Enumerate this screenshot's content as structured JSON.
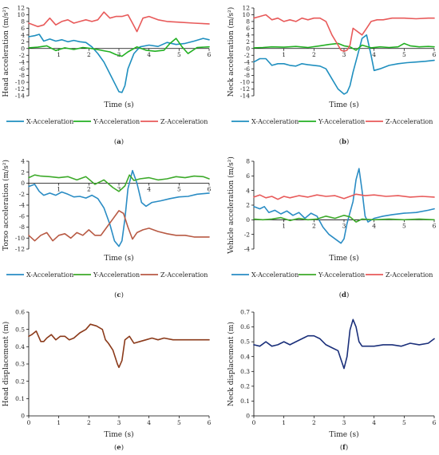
{
  "chart_data": [
    {
      "panel": "(a)",
      "type": "line",
      "ylabel": "Head acceleration (m/s²)",
      "xlabel": "Time (s)",
      "xlim": [
        0,
        6
      ],
      "ylim": [
        -14,
        12
      ],
      "xticks": [
        1,
        2,
        3,
        4,
        5,
        6
      ],
      "yticks": [
        12,
        10,
        8,
        6,
        4,
        2,
        0,
        -2,
        -4,
        -6,
        -8,
        -10,
        -12,
        -14
      ],
      "series": [
        {
          "name": "X-Acceleration",
          "color": "#1f8fbf",
          "x": [
            0,
            0.2,
            0.35,
            0.5,
            0.7,
            0.9,
            1.1,
            1.3,
            1.5,
            1.7,
            1.9,
            2.1,
            2.3,
            2.5,
            2.7,
            2.9,
            3.0,
            3.1,
            3.2,
            3.3,
            3.5,
            3.7,
            4.0,
            4.3,
            4.6,
            4.9,
            5.2,
            5.5,
            5.8,
            6.0
          ],
          "y": [
            3.5,
            3.8,
            4.2,
            2.2,
            2.8,
            2.2,
            2.6,
            2.0,
            2.4,
            2.0,
            1.8,
            0.5,
            -1.5,
            -4.0,
            -7.5,
            -11.0,
            -12.8,
            -13.0,
            -11.0,
            -6.0,
            -1.5,
            0.5,
            1.0,
            0.6,
            1.8,
            1.2,
            1.5,
            2.2,
            3.0,
            2.6
          ]
        },
        {
          "name": "Y-Acceleration",
          "color": "#22b022",
          "x": [
            0,
            0.3,
            0.6,
            0.9,
            1.2,
            1.5,
            1.8,
            2.1,
            2.4,
            2.7,
            2.9,
            3.1,
            3.3,
            3.6,
            3.9,
            4.2,
            4.5,
            4.7,
            4.9,
            5.1,
            5.3,
            5.6,
            6.0
          ],
          "y": [
            0.2,
            0.4,
            0.8,
            -0.6,
            0.2,
            -0.3,
            0.3,
            0.0,
            -0.5,
            -1.0,
            -1.8,
            -2.3,
            -1.0,
            0.5,
            -0.5,
            -0.8,
            -0.5,
            1.5,
            3.0,
            0.5,
            -1.5,
            0.3,
            0.5
          ]
        },
        {
          "name": "Z-Acceleration",
          "color": "#e85a5a",
          "x": [
            0,
            0.3,
            0.5,
            0.7,
            0.9,
            1.1,
            1.3,
            1.5,
            1.7,
            1.9,
            2.1,
            2.3,
            2.5,
            2.7,
            2.9,
            3.1,
            3.3,
            3.45,
            3.6,
            3.8,
            4.0,
            4.3,
            4.6,
            5.0,
            5.5,
            6.0
          ],
          "y": [
            7.5,
            6.5,
            7.0,
            9.0,
            7.0,
            8.0,
            8.5,
            7.5,
            8.0,
            8.5,
            8.0,
            8.5,
            10.8,
            9.0,
            9.5,
            9.5,
            10.0,
            7.5,
            5.0,
            9.0,
            9.5,
            8.5,
            8.0,
            7.8,
            7.5,
            7.3
          ]
        }
      ]
    },
    {
      "panel": "(b)",
      "type": "line",
      "ylabel": "Neck acceleration (m/s²)",
      "xlabel": "Time (s)",
      "xlim": [
        0,
        6
      ],
      "ylim": [
        -14,
        12
      ],
      "xticks": [
        1,
        2,
        3,
        4,
        5,
        6
      ],
      "yticks": [
        12,
        10,
        8,
        6,
        4,
        2,
        0,
        -2,
        -4,
        -6,
        -8,
        -10,
        -12,
        -14
      ],
      "series": [
        {
          "name": "X-Acceleration",
          "color": "#1f8fbf",
          "x": [
            0,
            0.2,
            0.4,
            0.6,
            0.8,
            1.0,
            1.2,
            1.4,
            1.6,
            1.8,
            2.0,
            2.2,
            2.4,
            2.6,
            2.8,
            3.0,
            3.1,
            3.2,
            3.3,
            3.45,
            3.6,
            3.75,
            3.9,
            4.0,
            4.2,
            4.5,
            4.8,
            5.1,
            5.4,
            5.7,
            6.0
          ],
          "y": [
            -4,
            -3,
            -3,
            -5,
            -4.5,
            -4.5,
            -5,
            -5.2,
            -4.5,
            -4.8,
            -5,
            -5.2,
            -6,
            -9,
            -12,
            -13.5,
            -13,
            -11,
            -7,
            -2,
            3,
            4,
            -2,
            -6.5,
            -6,
            -5,
            -4.5,
            -4.2,
            -4.0,
            -3.8,
            -3.5
          ]
        },
        {
          "name": "Y-Acceleration",
          "color": "#22b022",
          "x": [
            0,
            0.3,
            0.6,
            1.0,
            1.4,
            1.8,
            2.2,
            2.5,
            2.8,
            3.0,
            3.2,
            3.4,
            3.6,
            3.9,
            4.2,
            4.5,
            4.8,
            5.0,
            5.2,
            5.5,
            5.8,
            6.0
          ],
          "y": [
            0.2,
            0.3,
            0.5,
            0.4,
            0.6,
            0.3,
            0.8,
            1.2,
            1.5,
            0.8,
            0.5,
            -0.5,
            1.0,
            0.2,
            0.5,
            0.3,
            0.5,
            1.5,
            0.8,
            0.5,
            0.6,
            0.5
          ]
        },
        {
          "name": "Z-Acceleration",
          "color": "#e85a5a",
          "x": [
            0,
            0.2,
            0.4,
            0.6,
            0.8,
            1.0,
            1.2,
            1.4,
            1.6,
            1.8,
            2.0,
            2.2,
            2.4,
            2.6,
            2.8,
            2.9,
            3.0,
            3.1,
            3.2,
            3.3,
            3.45,
            3.6,
            3.75,
            3.9,
            4.1,
            4.3,
            4.6,
            5.0,
            5.4,
            5.8,
            6.0
          ],
          "y": [
            9,
            9.5,
            10,
            8.5,
            9,
            8,
            8.5,
            8,
            9,
            8.5,
            9,
            9,
            8,
            4,
            1,
            -0.5,
            -0.8,
            -0.5,
            1,
            6,
            5,
            4,
            6,
            8,
            8.5,
            8.5,
            9,
            9,
            8.8,
            9,
            9
          ]
        }
      ]
    },
    {
      "panel": "(c)",
      "type": "line",
      "ylabel": "Torso acceleration (m/s²)",
      "xlabel": "Time (s)",
      "xlim": [
        0,
        6
      ],
      "ylim": [
        -12,
        4
      ],
      "xticks": [
        1,
        2,
        3,
        4,
        5,
        6
      ],
      "yticks": [
        4,
        2,
        0,
        -2,
        -4,
        -6,
        -8,
        -10,
        -12
      ],
      "series": [
        {
          "name": "X-Acceleration",
          "color": "#2a8cc4",
          "x": [
            0,
            0.2,
            0.35,
            0.5,
            0.7,
            0.9,
            1.1,
            1.3,
            1.5,
            1.7,
            1.9,
            2.1,
            2.3,
            2.5,
            2.7,
            2.85,
            3.0,
            3.1,
            3.2,
            3.3,
            3.45,
            3.6,
            3.75,
            3.9,
            4.1,
            4.4,
            4.7,
            5.0,
            5.3,
            5.6,
            6.0
          ],
          "y": [
            -0.6,
            -0.2,
            -1.5,
            -2.2,
            -1.8,
            -2.2,
            -1.6,
            -2.0,
            -2.5,
            -2.4,
            -2.7,
            -2.2,
            -2.8,
            -4.5,
            -7.5,
            -10.5,
            -11.5,
            -10.5,
            -6.5,
            -1.0,
            2.3,
            0.0,
            -3.5,
            -4.2,
            -3.5,
            -3.2,
            -2.8,
            -2.5,
            -2.4,
            -2.0,
            -1.8
          ]
        },
        {
          "name": "Y-Acceleration",
          "color": "#3daa2a",
          "x": [
            0,
            0.2,
            0.4,
            0.7,
            1.0,
            1.3,
            1.6,
            1.9,
            2.2,
            2.5,
            2.8,
            3.0,
            3.2,
            3.35,
            3.5,
            3.7,
            4.0,
            4.3,
            4.6,
            4.9,
            5.2,
            5.5,
            5.8,
            6.0
          ],
          "y": [
            1.0,
            1.5,
            1.3,
            1.2,
            1.0,
            1.2,
            0.6,
            1.2,
            -0.2,
            0.6,
            -0.8,
            -1.5,
            -0.5,
            1.5,
            0.5,
            0.8,
            1.0,
            0.6,
            0.8,
            1.2,
            1.0,
            1.3,
            1.2,
            0.8
          ]
        },
        {
          "name": "Z-Acceleration",
          "color": "#b85a44",
          "x": [
            0,
            0.2,
            0.4,
            0.6,
            0.8,
            1.0,
            1.2,
            1.4,
            1.6,
            1.8,
            2.0,
            2.2,
            2.4,
            2.6,
            2.8,
            3.0,
            3.15,
            3.3,
            3.45,
            3.6,
            3.8,
            4.0,
            4.3,
            4.6,
            4.9,
            5.2,
            5.5,
            6.0
          ],
          "y": [
            -9.5,
            -10.5,
            -9.5,
            -9,
            -10.5,
            -9.5,
            -9.2,
            -10,
            -9,
            -9.5,
            -8.5,
            -9.5,
            -9.5,
            -8,
            -6.5,
            -5.0,
            -5.5,
            -8.0,
            -10.2,
            -9,
            -8.5,
            -8.2,
            -8.8,
            -9.2,
            -9.5,
            -9.5,
            -9.8,
            -9.8
          ]
        }
      ]
    },
    {
      "panel": "(d)",
      "type": "line",
      "ylabel": "Vehicle acceleration (m/s²)",
      "xlabel": "Time (s)",
      "xlim": [
        0,
        6
      ],
      "ylim": [
        -4,
        8
      ],
      "xticks": [
        1,
        2,
        3,
        4,
        5,
        6
      ],
      "yticks": [
        8,
        6,
        4,
        2,
        0,
        -2,
        -4
      ],
      "series": [
        {
          "name": "X-Acceleration",
          "color": "#2a8cc4",
          "x": [
            0,
            0.2,
            0.35,
            0.5,
            0.7,
            0.9,
            1.1,
            1.3,
            1.5,
            1.7,
            1.9,
            2.1,
            2.3,
            2.5,
            2.7,
            2.9,
            3.0,
            3.1,
            3.2,
            3.3,
            3.4,
            3.5,
            3.6,
            3.7,
            3.8,
            4.0,
            4.3,
            4.6,
            5.0,
            5.4,
            5.8,
            6.0
          ],
          "y": [
            1.8,
            1.5,
            1.8,
            1.0,
            1.3,
            0.8,
            1.2,
            0.6,
            1.0,
            0.2,
            0.9,
            0.5,
            -1.0,
            -2.0,
            -2.6,
            -3.2,
            -2.6,
            -0.5,
            1.0,
            2.5,
            5.5,
            7.0,
            4.0,
            0.5,
            -0.3,
            0.2,
            0.5,
            0.7,
            0.9,
            1.0,
            1.3,
            1.5
          ]
        },
        {
          "name": "Y-Acceleration",
          "color": "#3daa2a",
          "x": [
            0,
            0.3,
            0.6,
            0.9,
            1.2,
            1.5,
            1.8,
            2.1,
            2.4,
            2.7,
            3.0,
            3.2,
            3.4,
            3.6,
            4.0,
            4.5,
            5.0,
            5.5,
            6.0
          ],
          "y": [
            0.1,
            0.0,
            0.1,
            0.3,
            -0.1,
            0.2,
            0.0,
            0.1,
            0.5,
            0.2,
            0.6,
            0.4,
            -0.3,
            0.1,
            0.0,
            0.1,
            0.0,
            0.1,
            0.0
          ]
        },
        {
          "name": "Z-Acceleration",
          "color": "#e85a5a",
          "x": [
            0,
            0.2,
            0.4,
            0.6,
            0.8,
            1.0,
            1.2,
            1.5,
            1.8,
            2.1,
            2.4,
            2.7,
            3.0,
            3.2,
            3.4,
            3.7,
            4.0,
            4.4,
            4.8,
            5.2,
            5.6,
            6.0
          ],
          "y": [
            3.1,
            3.4,
            3.0,
            3.2,
            2.8,
            3.2,
            3.0,
            3.3,
            3.1,
            3.4,
            3.2,
            3.3,
            2.9,
            3.2,
            3.5,
            3.3,
            3.4,
            3.2,
            3.3,
            3.1,
            3.2,
            3.1
          ]
        }
      ]
    },
    {
      "panel": "(e)",
      "type": "line",
      "ylabel": "Head displacement (m)",
      "xlabel": "Time (s)",
      "xlim": [
        0,
        6
      ],
      "ylim": [
        0,
        0.6
      ],
      "xticks": [
        0,
        1,
        2,
        3,
        4,
        5,
        6
      ],
      "yticks": [
        0,
        0.1,
        0.2,
        0.3,
        0.4,
        0.5,
        0.6
      ],
      "series": [
        {
          "color": "#8b3a1a",
          "x": [
            0,
            0.1,
            0.25,
            0.4,
            0.5,
            0.6,
            0.75,
            0.9,
            1.05,
            1.2,
            1.35,
            1.5,
            1.7,
            1.9,
            2.05,
            2.25,
            2.45,
            2.55,
            2.65,
            2.8,
            2.95,
            3.0,
            3.1,
            3.2,
            3.35,
            3.5,
            3.7,
            3.9,
            4.1,
            4.3,
            4.5,
            4.8,
            5.1,
            5.4,
            5.7,
            6.0
          ],
          "y": [
            0.46,
            0.47,
            0.49,
            0.43,
            0.43,
            0.45,
            0.47,
            0.44,
            0.46,
            0.46,
            0.44,
            0.45,
            0.48,
            0.5,
            0.53,
            0.52,
            0.5,
            0.44,
            0.42,
            0.38,
            0.3,
            0.28,
            0.32,
            0.44,
            0.46,
            0.42,
            0.43,
            0.44,
            0.45,
            0.44,
            0.45,
            0.44,
            0.44,
            0.44,
            0.44,
            0.44
          ]
        }
      ]
    },
    {
      "panel": "(f)",
      "type": "line",
      "ylabel": "Neck displacement (m)",
      "xlabel": "Time (s)",
      "xlim": [
        0,
        6
      ],
      "ylim": [
        0,
        0.7
      ],
      "xticks": [
        0,
        1,
        2,
        3,
        4,
        5,
        6
      ],
      "yticks": [
        0,
        0.1,
        0.2,
        0.3,
        0.4,
        0.5,
        0.6,
        0.7
      ],
      "series": [
        {
          "color": "#1a2f7a",
          "x": [
            0,
            0.2,
            0.4,
            0.6,
            0.8,
            1.0,
            1.2,
            1.4,
            1.6,
            1.8,
            2.0,
            2.2,
            2.4,
            2.6,
            2.8,
            2.9,
            3.0,
            3.1,
            3.2,
            3.3,
            3.4,
            3.5,
            3.6,
            3.8,
            4.0,
            4.3,
            4.6,
            4.9,
            5.2,
            5.5,
            5.8,
            6.0
          ],
          "y": [
            0.48,
            0.47,
            0.5,
            0.47,
            0.48,
            0.5,
            0.48,
            0.5,
            0.52,
            0.54,
            0.54,
            0.52,
            0.48,
            0.46,
            0.44,
            0.38,
            0.32,
            0.4,
            0.58,
            0.65,
            0.6,
            0.5,
            0.47,
            0.47,
            0.47,
            0.48,
            0.48,
            0.47,
            0.49,
            0.48,
            0.49,
            0.52
          ]
        }
      ]
    }
  ]
}
